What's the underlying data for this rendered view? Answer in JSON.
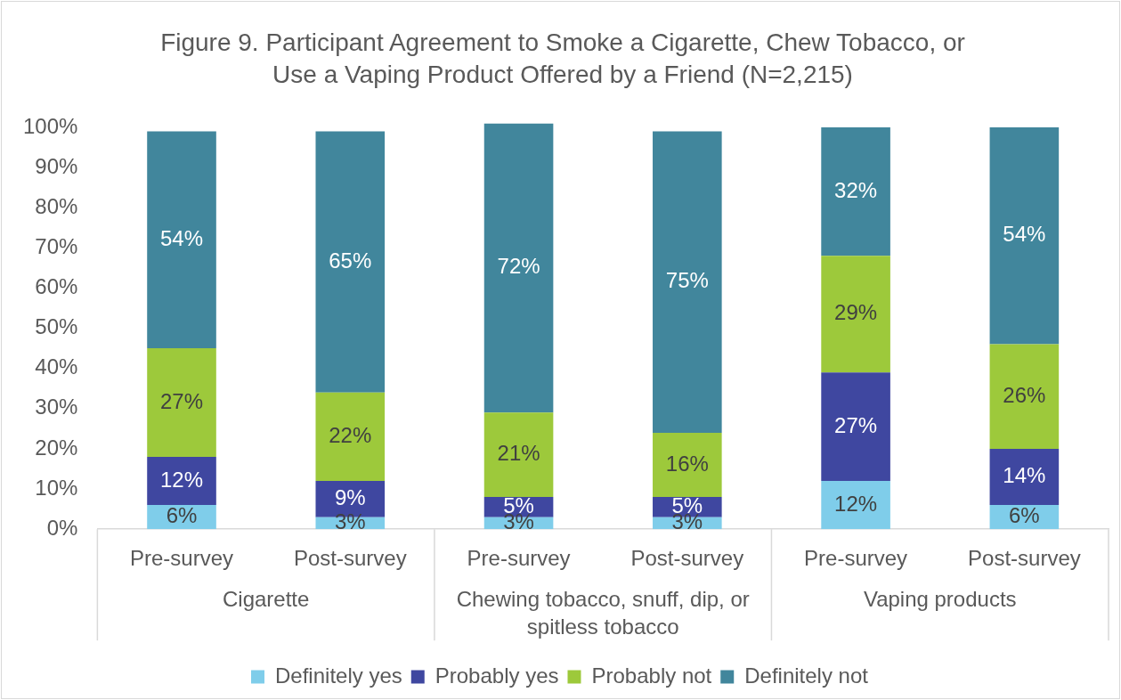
{
  "chart_data": {
    "type": "bar",
    "stacked": true,
    "title": "Figure 9. Participant Agreement to Smoke a Cigarette, Chew Tobacco, or Use a Vaping Product Offered by a Friend (N=2,215)",
    "categories": [
      "Pre-survey",
      "Post-survey",
      "Pre-survey",
      "Post-survey",
      "Pre-survey",
      "Post-survey"
    ],
    "annotations": [
      "Cigarette",
      "Chewing tobacco, snuff, dip, or spitless tobacco",
      "Vaping products"
    ],
    "series": [
      {
        "name": "Definitely yes",
        "color": "#7fcdea",
        "values": [
          6,
          3,
          3,
          3,
          12,
          6
        ],
        "value_labels": [
          "6%",
          "3%",
          "3%",
          "3%",
          "12%",
          "6%"
        ]
      },
      {
        "name": "Probably yes",
        "color": "#3f47a0",
        "values": [
          12,
          9,
          5,
          5,
          27,
          14
        ],
        "value_labels": [
          "12%",
          "9%",
          "5%",
          "5%",
          "27%",
          "14%"
        ]
      },
      {
        "name": "Probably not",
        "color": "#9dc93b",
        "values": [
          27,
          22,
          21,
          16,
          29,
          26
        ],
        "value_labels": [
          "27%",
          "22%",
          "21%",
          "16%",
          "29%",
          "26%"
        ]
      },
      {
        "name": "Definitely not",
        "color": "#41869c",
        "values": [
          54,
          65,
          72,
          75,
          32,
          54
        ],
        "value_labels": [
          "54%",
          "65%",
          "72%",
          "75%",
          "32%",
          "54%"
        ]
      }
    ],
    "ylim": [
      0,
      101
    ],
    "yticks": [
      {
        "value": 0,
        "label": "0%"
      },
      {
        "value": 10,
        "label": "10%"
      },
      {
        "value": 20,
        "label": "20%"
      },
      {
        "value": 30,
        "label": "30%"
      },
      {
        "value": 40,
        "label": "40%"
      },
      {
        "value": 50,
        "label": "50%"
      },
      {
        "value": 60,
        "label": "60%"
      },
      {
        "value": 70,
        "label": "70%"
      },
      {
        "value": 80,
        "label": "80%"
      },
      {
        "value": 90,
        "label": "90%"
      },
      {
        "value": 100,
        "label": "100%"
      }
    ],
    "grid": false,
    "legend": "bottom"
  }
}
